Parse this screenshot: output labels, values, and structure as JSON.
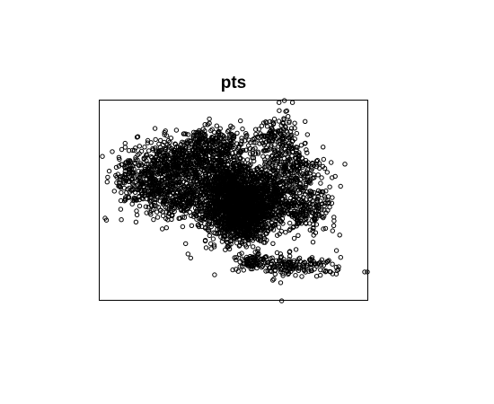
{
  "chart_data": {
    "type": "scatter",
    "title": "pts",
    "xlabel": "",
    "ylabel": "",
    "axes_visible": false,
    "grid": false,
    "legend": "none",
    "xlim": [
      0,
      100
    ],
    "ylim": [
      0,
      100
    ],
    "marker": "open-circle",
    "colors": {
      "points": "#000000",
      "frame": "#000000",
      "background": "#ffffff"
    },
    "series": [
      {
        "clusters": [
          {
            "cx": 53,
            "cy": 44,
            "sx": 6.5,
            "sy": 7.5,
            "n": 1400
          },
          {
            "cx": 61,
            "cy": 52,
            "sx": 9,
            "sy": 8,
            "n": 700
          },
          {
            "cx": 48,
            "cy": 58,
            "sx": 7,
            "sy": 6,
            "n": 550
          },
          {
            "cx": 38,
            "cy": 70,
            "sx": 8,
            "sy": 7,
            "n": 420
          },
          {
            "cx": 26,
            "cy": 68,
            "sx": 6,
            "sy": 6,
            "n": 300
          },
          {
            "cx": 20,
            "cy": 55,
            "sx": 5,
            "sy": 6,
            "n": 220
          },
          {
            "cx": 32,
            "cy": 50,
            "sx": 5,
            "sy": 5,
            "n": 220
          },
          {
            "cx": 12,
            "cy": 62,
            "sx": 4,
            "sy": 6,
            "n": 120
          },
          {
            "cx": 72,
            "cy": 66,
            "sx": 6,
            "sy": 6,
            "n": 200
          },
          {
            "cx": 78,
            "cy": 45,
            "sx": 5,
            "sy": 5,
            "n": 150
          },
          {
            "cx": 66,
            "cy": 82,
            "sx": 5,
            "sy": 5,
            "n": 160
          },
          {
            "cx": 44,
            "cy": 78,
            "sx": 5,
            "sy": 4,
            "n": 140
          },
          {
            "cx": 57,
            "cy": 19,
            "sx": 3,
            "sy": 2,
            "n": 80
          },
          {
            "cx": 68,
            "cy": 17,
            "sx": 4,
            "sy": 3,
            "n": 90
          },
          {
            "cx": 80,
            "cy": 17,
            "sx": 5,
            "sy": 3,
            "n": 70
          }
        ],
        "outliers": [
          [
            1,
            72
          ],
          [
            2,
            41
          ],
          [
            2.5,
            40
          ],
          [
            67,
            99
          ],
          [
            69,
            100
          ],
          [
            72,
            99
          ],
          [
            99,
            14
          ],
          [
            100,
            14
          ],
          [
            68,
            -0.5
          ],
          [
            33,
            23
          ],
          [
            34,
            21
          ],
          [
            85,
            64
          ],
          [
            88,
            62
          ],
          [
            90,
            57
          ]
        ]
      }
    ]
  }
}
